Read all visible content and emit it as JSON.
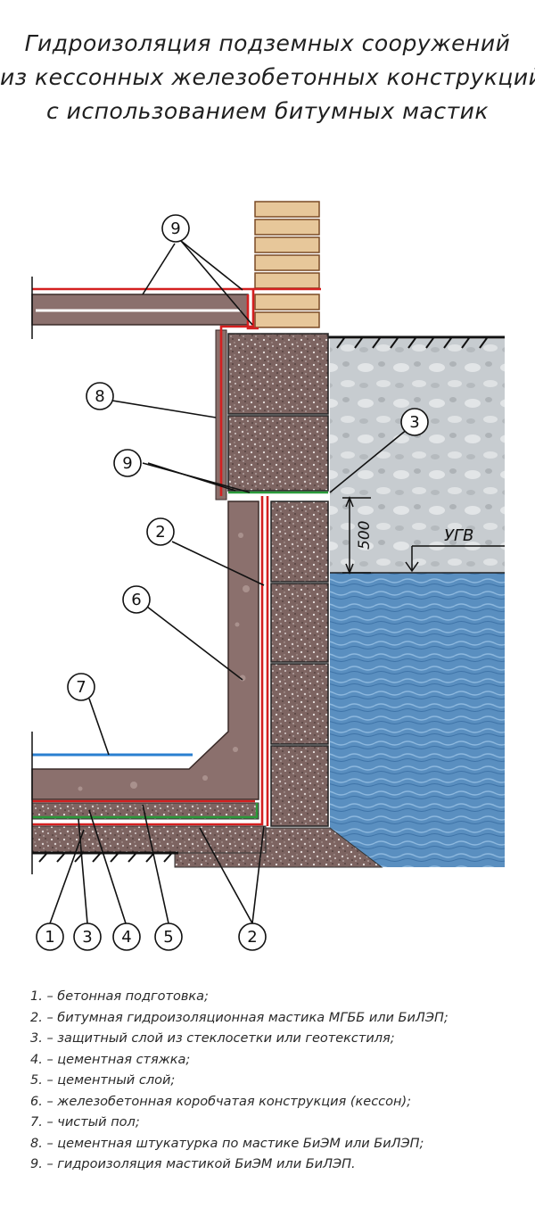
{
  "title": {
    "line1": "Гидроизоляция подземных сооружений",
    "line2": "из кессонных железобетонных конструкций",
    "line3": "с использованием битумных мастик"
  },
  "dimension_label": "500",
  "water_level_label": "УГВ",
  "callouts": {
    "c9_top": "9",
    "c8": "8",
    "c9_mid": "9",
    "c3_right": "3",
    "c2_mid": "2",
    "c6": "6",
    "c7": "7",
    "c1_bottom": "1",
    "c3_bottom": "3",
    "c4_bottom": "4",
    "c5_bottom": "5",
    "c2_bottom": "2"
  },
  "legend": [
    "1. – бетонная подготовка;",
    "2. – битумная гидроизоляционная мастика МГББ или БиЛЭП;",
    "3. – защитный слой из стеклосетки или геотекстиля;",
    "4. – цементная стяжка;",
    "5. – цементный слой;",
    "6. – железобетонная коробчатая конструкция (кессон);",
    "7. – чистый пол;",
    "8. – цементная штукатурка по мастике БиЭМ или БиЛЭП;",
    "9. – гидроизоляция мастикой БиЭМ или БиЛЭП."
  ],
  "colors": {
    "concrete": "#8a7370",
    "caisson": "#8b706d",
    "masonry": "#cfa579",
    "brick_line": "#7a4a25",
    "soil": "#c9cdd0",
    "water": "#5d92c2",
    "mastic": "#d42020",
    "geotextile": "#2a9a3a",
    "floor": "#2a7fd0"
  }
}
